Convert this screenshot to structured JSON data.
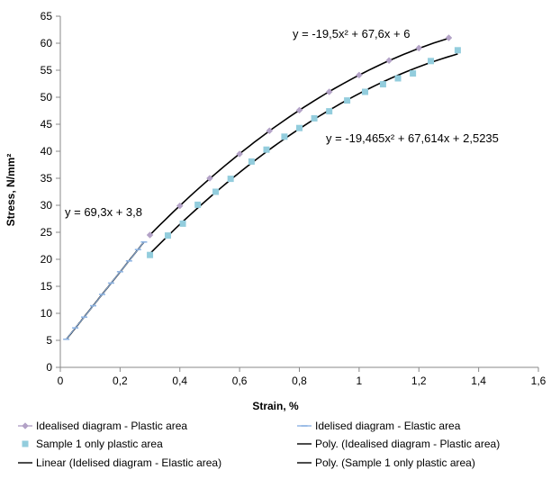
{
  "chart_data": {
    "type": "scatter",
    "xlabel": "Strain, %",
    "ylabel": "Stress, N/mm²",
    "xlim": [
      0,
      1.6
    ],
    "ylim": [
      0,
      65
    ],
    "x_ticks": [
      "0",
      "0,2",
      "0,4",
      "0,6",
      "0,8",
      "1",
      "1,2",
      "1,4",
      "1,6"
    ],
    "y_ticks": [
      "0",
      "5",
      "10",
      "15",
      "20",
      "25",
      "30",
      "35",
      "40",
      "45",
      "50",
      "55",
      "60",
      "65"
    ],
    "grid": false,
    "legend_position": "bottom",
    "series": [
      {
        "name": "Idealised diagram - Plastic area",
        "color": "#b3a2c7",
        "marker": "diamond",
        "x": [
          0.3,
          0.4,
          0.5,
          0.6,
          0.7,
          0.8,
          0.9,
          1.0,
          1.1,
          1.2,
          1.3
        ],
        "y": [
          24.5,
          29.9,
          35.0,
          39.5,
          43.8,
          47.6,
          51.0,
          54.1,
          56.8,
          59.1,
          61.0
        ]
      },
      {
        "name": "Idelised diagram - Elastic area",
        "color": "#8eb4e3",
        "marker": "dash",
        "x": [
          0.02,
          0.05,
          0.08,
          0.11,
          0.14,
          0.17,
          0.2,
          0.23,
          0.26,
          0.28
        ],
        "y": [
          5.2,
          7.3,
          9.3,
          11.4,
          13.5,
          15.6,
          17.7,
          19.7,
          21.8,
          23.2
        ]
      },
      {
        "name": "Sample 1 only plastic area",
        "color": "#93cddd",
        "marker": "square",
        "x": [
          0.3,
          0.36,
          0.41,
          0.46,
          0.52,
          0.57,
          0.64,
          0.69,
          0.75,
          0.8,
          0.85,
          0.9,
          0.96,
          1.02,
          1.08,
          1.13,
          1.18,
          1.24,
          1.33
        ],
        "y": [
          20.8,
          24.4,
          26.6,
          30.1,
          32.5,
          34.9,
          38.1,
          40.3,
          42.7,
          44.3,
          46.1,
          47.4,
          49.4,
          51.0,
          52.4,
          53.5,
          54.4,
          56.7,
          58.7
        ]
      }
    ],
    "trendlines": [
      {
        "name": "Poly. (Idealised diagram - Plastic area)",
        "type": "poly2",
        "coef": [
          -19.5,
          67.6,
          6
        ],
        "x_range": [
          0.3,
          1.3
        ],
        "color": "#000000",
        "label": "y = -19,5x² + 67,6x + 6"
      },
      {
        "name": "Linear (Idelised diagram - Elastic area)",
        "type": "linear",
        "coef": [
          69.3,
          3.8
        ],
        "x_range": [
          0.02,
          0.28
        ],
        "color": "#000000",
        "label": "y = 69,3x + 3,8"
      },
      {
        "name": "Poly. (Sample 1 only plastic area)",
        "type": "poly2",
        "coef": [
          -19.465,
          67.614,
          2.5235
        ],
        "x_range": [
          0.3,
          1.33
        ],
        "color": "#000000",
        "label": "y = -19,465x² + 67,614x + 2,5235"
      }
    ],
    "legend": [
      {
        "label": "Idealised diagram - Plastic area",
        "kind": "marker-line",
        "marker": "diamond",
        "color": "#b3a2c7"
      },
      {
        "label": "Idelised diagram - Elastic area",
        "kind": "marker-line",
        "marker": "dash",
        "color": "#8eb4e3"
      },
      {
        "label": "Sample 1 only plastic area",
        "kind": "marker",
        "marker": "square",
        "color": "#93cddd"
      },
      {
        "label": "Poly. (Idealised diagram - Plastic area)",
        "kind": "line",
        "color": "#000000"
      },
      {
        "label": "Linear (Idelised diagram - Elastic area)",
        "kind": "line",
        "color": "#000000"
      },
      {
        "label": "Poly. (Sample 1 only plastic area)",
        "kind": "line",
        "color": "#000000"
      }
    ]
  }
}
